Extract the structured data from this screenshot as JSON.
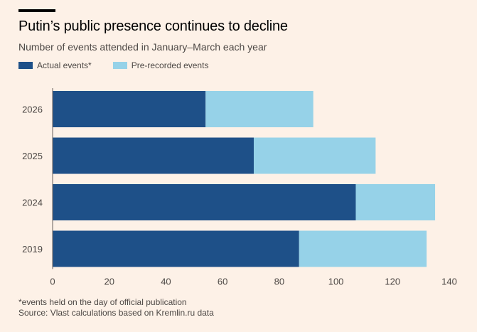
{
  "header": {
    "title": "Putin’s public presence continues to decline",
    "subtitle": "Number of events attended in January–March each year"
  },
  "legend": [
    {
      "label": "Actual events*",
      "color": "#1e5088"
    },
    {
      "label": "Pre-recorded events",
      "color": "#96d2e8"
    }
  ],
  "footer": {
    "footnote": "*events held on the day of official publication",
    "source": "Source: Vlast calculations based on Kremlin.ru data"
  },
  "chart_data": {
    "type": "bar",
    "orientation": "horizontal",
    "stacked": true,
    "categories": [
      "2026",
      "2025",
      "2024",
      "2019"
    ],
    "series": [
      {
        "name": "Actual events*",
        "values": [
          54,
          71,
          107,
          87
        ],
        "color": "#1e5088"
      },
      {
        "name": "Pre-recorded events",
        "values": [
          38,
          43,
          28,
          45
        ],
        "color": "#96d2e8"
      }
    ],
    "xlim": [
      0,
      140
    ],
    "xticks": [
      0,
      20,
      40,
      60,
      80,
      100,
      120,
      140
    ],
    "grid": false,
    "legend_position": "top-left"
  }
}
